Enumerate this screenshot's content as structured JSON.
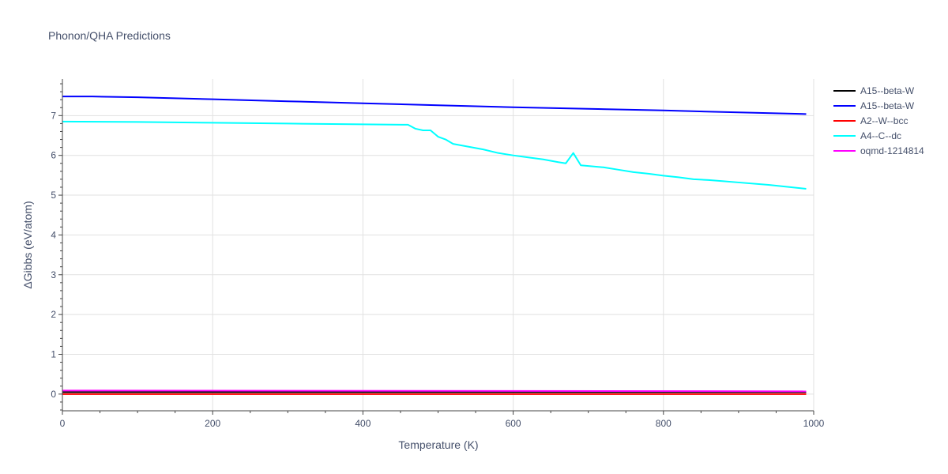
{
  "chart_data": {
    "type": "line",
    "title": "Phonon/QHA Predictions",
    "xlabel": "Temperature (K)",
    "ylabel": "ΔGibbs (eV/atom)",
    "xlim": [
      0,
      1000
    ],
    "ylim": [
      -0.42,
      7.92
    ],
    "xticks": [
      0,
      200,
      400,
      600,
      800,
      1000
    ],
    "yticks": [
      0,
      1,
      2,
      3,
      4,
      5,
      6,
      7
    ],
    "grid": true,
    "legend_position": "top-right",
    "series": [
      {
        "name": "A15--beta-W",
        "color": "#000000",
        "x": [
          0,
          990
        ],
        "y": [
          0.05,
          0.05
        ]
      },
      {
        "name": "A15--beta-W",
        "color": "#0000ff",
        "x": [
          0,
          40,
          100,
          200,
          300,
          400,
          500,
          600,
          700,
          800,
          900,
          990
        ],
        "y": [
          7.48,
          7.48,
          7.46,
          7.41,
          7.36,
          7.31,
          7.26,
          7.21,
          7.17,
          7.13,
          7.08,
          7.04
        ]
      },
      {
        "name": "A2--W--bcc",
        "color": "#ff0000",
        "x": [
          0,
          990
        ],
        "y": [
          0.0,
          0.0
        ]
      },
      {
        "name": "A4--C--dc",
        "color": "#00ffff",
        "x": [
          0,
          100,
          200,
          300,
          400,
          460,
          470,
          480,
          490,
          500,
          510,
          520,
          540,
          560,
          580,
          600,
          620,
          640,
          660,
          670,
          680,
          690,
          720,
          740,
          760,
          780,
          800,
          820,
          840,
          860,
          880,
          900,
          940,
          990
        ],
        "y": [
          6.85,
          6.84,
          6.82,
          6.8,
          6.78,
          6.77,
          6.67,
          6.63,
          6.63,
          6.47,
          6.4,
          6.29,
          6.22,
          6.15,
          6.06,
          6.0,
          5.95,
          5.9,
          5.83,
          5.8,
          6.06,
          5.75,
          5.7,
          5.64,
          5.58,
          5.54,
          5.49,
          5.45,
          5.4,
          5.38,
          5.35,
          5.32,
          5.26,
          5.16
        ]
      },
      {
        "name": "oqmd-1214814",
        "color": "#ff00ff",
        "x": [
          0,
          990
        ],
        "y": [
          0.09,
          0.07
        ]
      }
    ]
  }
}
